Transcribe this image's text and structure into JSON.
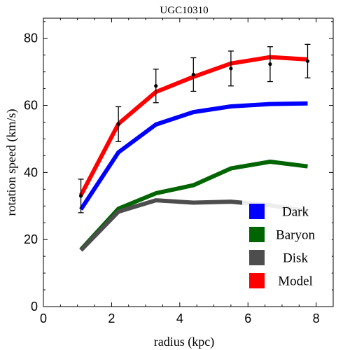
{
  "chart_data": {
    "type": "line",
    "title": "UGC10310",
    "xlabel": "radius (kpc)",
    "ylabel": "rotation speed (km/s)",
    "xlim": [
      0,
      8.5
    ],
    "ylim": [
      0,
      86
    ],
    "xticks": [
      0,
      2,
      4,
      6,
      8
    ],
    "yticks": [
      0,
      20,
      40,
      60,
      80
    ],
    "x": [
      1.1,
      2.2,
      3.3,
      4.4,
      5.5,
      6.65,
      7.75
    ],
    "series": [
      {
        "name": "Dark",
        "color": "#0000ff",
        "values": [
          29.0,
          46.0,
          54.3,
          58.0,
          59.7,
          60.4,
          60.6
        ]
      },
      {
        "name": "Baryon",
        "color": "#006400",
        "values": [
          17.0,
          29.2,
          33.8,
          36.2,
          41.2,
          43.2,
          41.8
        ]
      },
      {
        "name": "Disk",
        "color": "#4d4d4d",
        "values": [
          16.8,
          28.3,
          31.7,
          31.0,
          31.3,
          30.2,
          28.5
        ]
      },
      {
        "name": "Model",
        "color": "#ff0000",
        "values": [
          33.2,
          54.5,
          64.0,
          68.5,
          72.5,
          74.4,
          73.7
        ]
      }
    ],
    "observations": {
      "x": [
        1.1,
        2.2,
        3.3,
        4.4,
        5.5,
        6.65,
        7.75
      ],
      "y": [
        33.0,
        54.4,
        65.8,
        69.2,
        71.0,
        72.3,
        73.2
      ],
      "err": [
        5.0,
        5.2,
        5.0,
        5.0,
        5.2,
        5.2,
        5.0
      ]
    },
    "legend_position": "bottom-right",
    "grid": false
  }
}
